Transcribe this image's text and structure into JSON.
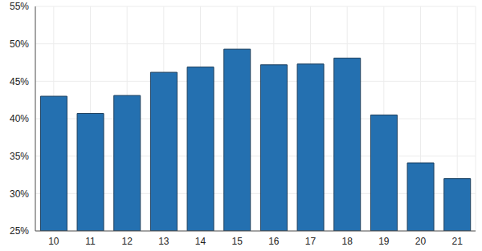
{
  "chart_data": {
    "type": "bar",
    "categories": [
      "10",
      "11",
      "12",
      "13",
      "14",
      "15",
      "16",
      "17",
      "18",
      "19",
      "20",
      "21"
    ],
    "values": [
      43.0,
      40.7,
      43.1,
      46.2,
      46.9,
      49.3,
      47.2,
      47.3,
      48.1,
      40.5,
      34.1,
      32.0
    ],
    "color": "#2470b0",
    "ylim": [
      25,
      55
    ],
    "yticks": [
      {
        "value": 25,
        "label": "25%"
      },
      {
        "value": 30,
        "label": "30%"
      },
      {
        "value": 35,
        "label": "35%"
      },
      {
        "value": 40,
        "label": "40%"
      },
      {
        "value": 45,
        "label": "45%"
      },
      {
        "value": 50,
        "label": "50%"
      },
      {
        "value": 55,
        "label": "55%"
      }
    ],
    "grid": true
  }
}
